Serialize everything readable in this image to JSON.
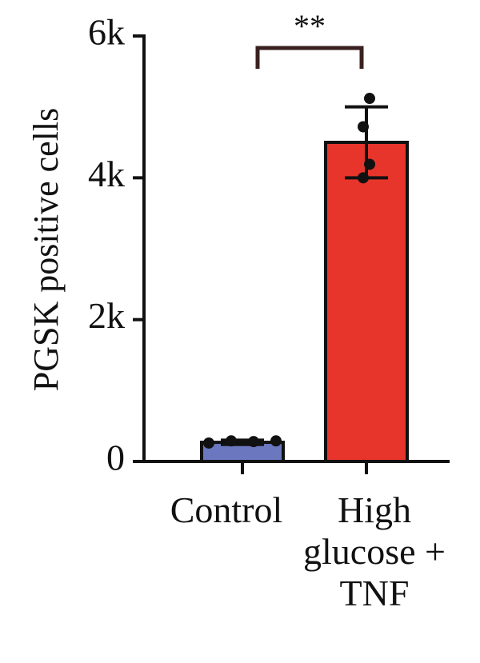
{
  "chart_data": {
    "type": "bar",
    "y_label": "PGSK positive cells",
    "categories": [
      "Control",
      "High glucose + TNF"
    ],
    "values": [
      270,
      4500
    ],
    "errors": [
      30,
      500
    ],
    "points": [
      [
        260,
        290,
        280,
        290
      ],
      [
        5120,
        4720,
        4190,
        4000
      ]
    ],
    "colors": [
      "#6b78c0",
      "#e8352b"
    ],
    "annotation": "**",
    "ylim": [
      0,
      6000
    ],
    "yticks": [
      0,
      {
        "value": 2000,
        "label": "2k"
      },
      {
        "value": 4000,
        "label": "4k"
      },
      {
        "value": 6000,
        "label": "6k"
      }
    ]
  }
}
